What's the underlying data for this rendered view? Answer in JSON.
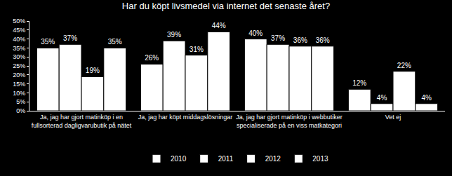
{
  "chart_data": {
    "type": "bar",
    "title": "Har du köpt livsmedel via internet det senaste året?",
    "categories": [
      "Ja, jag har gjort matinköp i en fullsorterad dagligvarubutik på nätet",
      "Ja, jag har köpt middagslösningar",
      "Ja, jag har gjort matinköp i webbutiker specialiserade på en viss matkategori",
      "Vet ej"
    ],
    "series": [
      {
        "name": "2010",
        "color": "#ffffff",
        "values": [
          35,
          26,
          40,
          12
        ],
        "value_labels": [
          "35%",
          "26%",
          "40%",
          "12%"
        ]
      },
      {
        "name": "2011",
        "color": "#ffffff",
        "values": [
          37,
          39,
          37,
          4
        ],
        "value_labels": [
          "37%",
          "39%",
          "37%",
          "4%"
        ]
      },
      {
        "name": "2012",
        "color": "#ffffff",
        "values": [
          19,
          31,
          36,
          22
        ],
        "value_labels": [
          "19%",
          "31%",
          "36%",
          "22%"
        ]
      },
      {
        "name": "2013",
        "color": "#ffffff",
        "values": [
          35,
          44,
          36,
          4
        ],
        "value_labels": [
          "35%",
          "44%",
          "36%",
          "4%"
        ]
      }
    ],
    "ylim": [
      0,
      50
    ],
    "yticks": [
      {
        "value": 0,
        "label": "0%"
      },
      {
        "value": 5,
        "label": "5%"
      },
      {
        "value": 10,
        "label": "10%"
      },
      {
        "value": 15,
        "label": "15%"
      },
      {
        "value": 20,
        "label": "20%"
      },
      {
        "value": 25,
        "label": "25%"
      },
      {
        "value": 30,
        "label": "30%"
      },
      {
        "value": 35,
        "label": "35%"
      },
      {
        "value": 40,
        "label": "40%"
      },
      {
        "value": 45,
        "label": "45%"
      },
      {
        "value": 50,
        "label": "50%"
      }
    ],
    "grid": false,
    "legend": "bottom",
    "data_labels": true
  }
}
